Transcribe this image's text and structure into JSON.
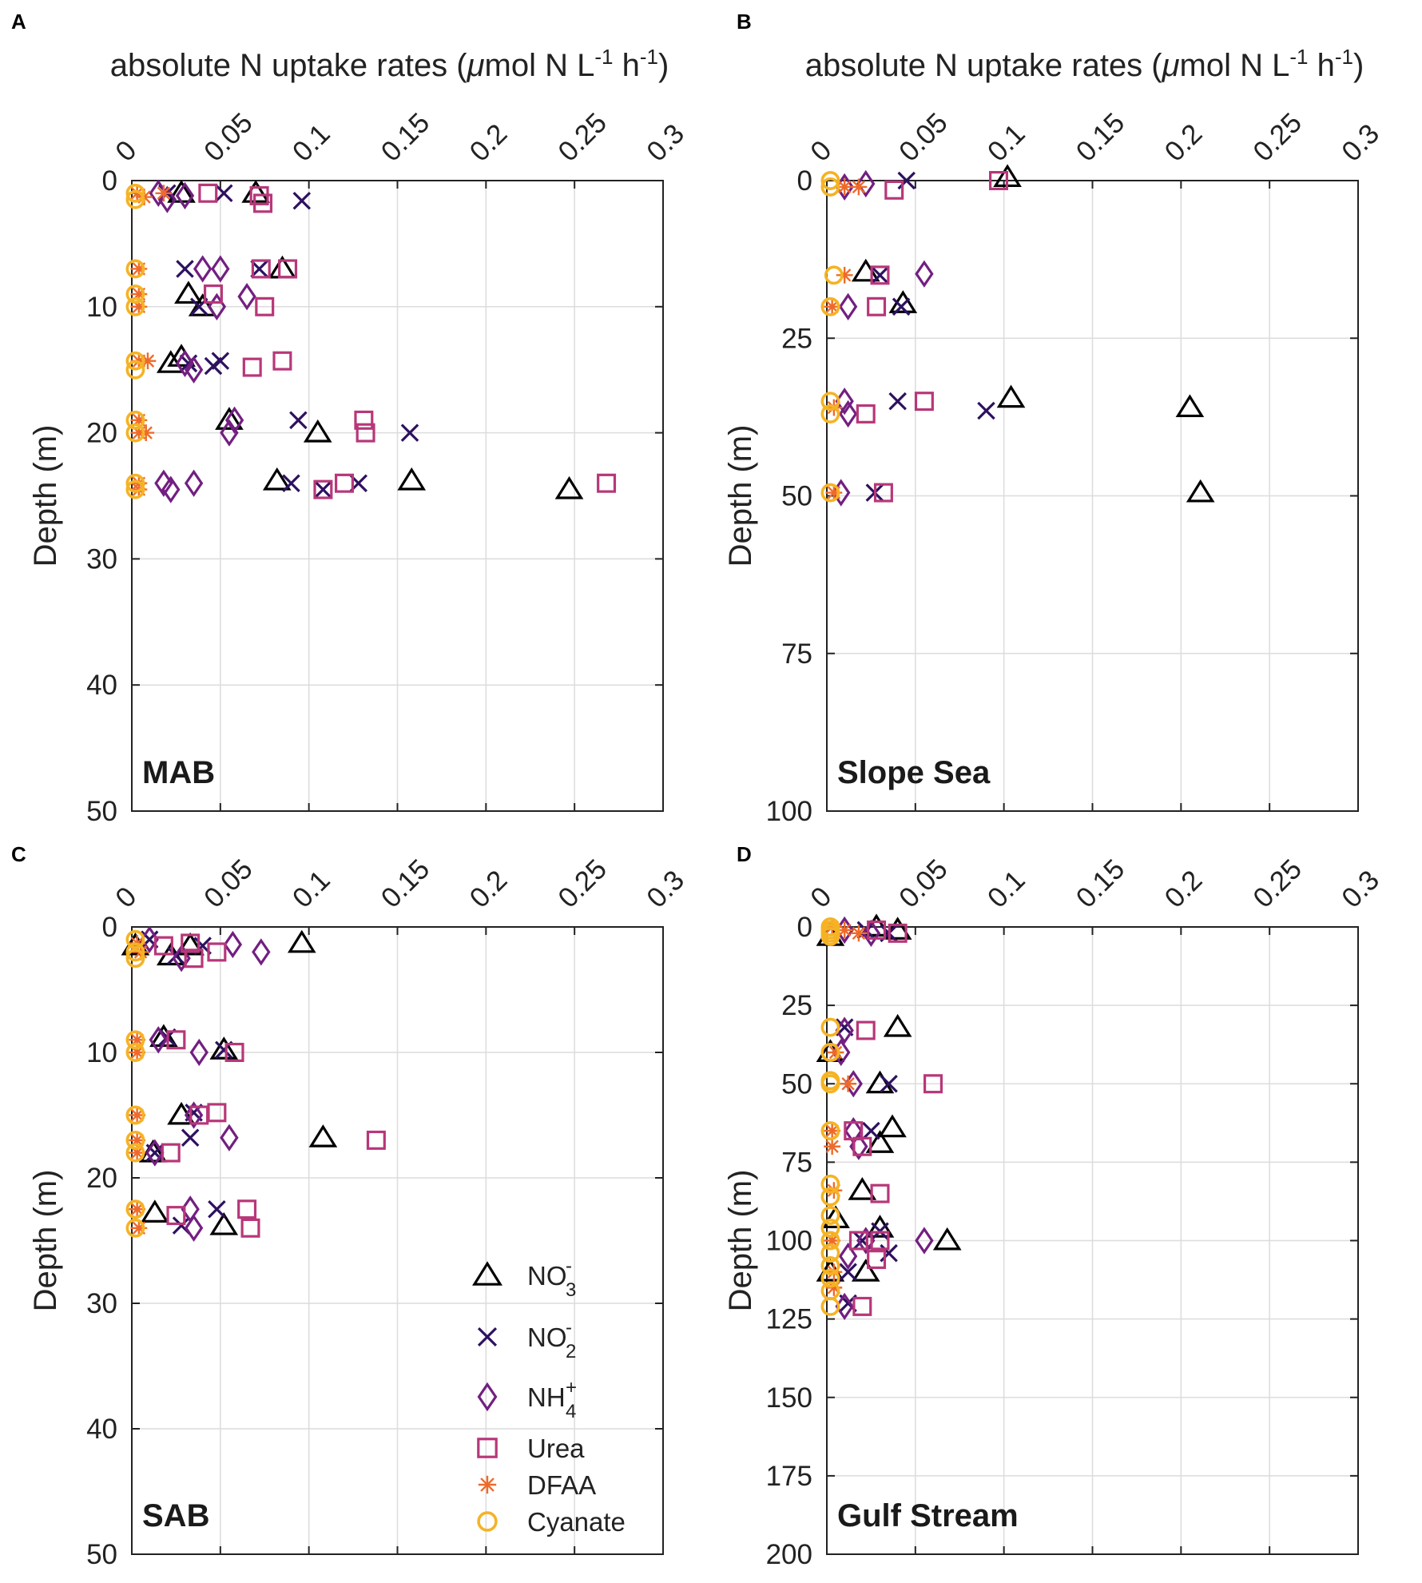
{
  "legend": [
    {
      "key": "NO3",
      "base": "NO",
      "sub": "3",
      "sup": "-",
      "color": "#000000",
      "marker": "triangle"
    },
    {
      "key": "NO2",
      "base": "NO",
      "sub": "2",
      "sup": "-",
      "color": "#2d1160",
      "marker": "x"
    },
    {
      "key": "NH4",
      "base": "NH",
      "sub": "4",
      "sup": "+",
      "color": "#721f81",
      "marker": "diamond"
    },
    {
      "key": "Urea",
      "base": "Urea",
      "sub": "",
      "sup": "",
      "color": "#b73779",
      "marker": "square"
    },
    {
      "key": "DFAA",
      "base": "DFAA",
      "sub": "",
      "sup": "",
      "color": "#f1605d",
      "marker": "asterisk"
    },
    {
      "key": "Cyanate",
      "base": "Cyanate",
      "sub": "",
      "sup": "",
      "color": "#f5a623",
      "marker": "circle"
    }
  ],
  "colors": {
    "NO3": "#000000",
    "NO2": "#2d1160",
    "NH4": "#721f81",
    "Urea": "#b73779",
    "DFAA": "#ee6a2a",
    "Cyanate": "#f5b324",
    "grid": "#dcdcdc",
    "axis": "#222222"
  },
  "chart_data": [
    {
      "type": "scatter",
      "panel": "A",
      "region": "MAB",
      "xlabel_main": "absolute N uptake rates (",
      "xlabel_mu": "μ",
      "xlabel_rest": "mol N L",
      "xlabel_sup1": "-1",
      "xlabel_h": " h",
      "xlabel_sup2": "-1",
      "xlabel_close": ")",
      "ylabel": "Depth (m)",
      "xlim": [
        0,
        0.3
      ],
      "ylim": [
        0,
        50
      ],
      "xticks": [
        "0",
        "0.05",
        "0.1",
        "0.15",
        "0.2",
        "0.25",
        "0.3"
      ],
      "yticks": [
        "0",
        "10",
        "20",
        "30",
        "40",
        "50"
      ],
      "series": {
        "NO3": [
          [
            0.028,
            1
          ],
          [
            0.07,
            1
          ],
          [
            0.085,
            7
          ],
          [
            0.032,
            9
          ],
          [
            0.04,
            10
          ],
          [
            0.028,
            14
          ],
          [
            0.022,
            14.5
          ],
          [
            0.055,
            19
          ],
          [
            0.105,
            20
          ],
          [
            0.082,
            23.8
          ],
          [
            0.158,
            23.8
          ],
          [
            0.247,
            24.5
          ]
        ],
        "NO2": [
          [
            0.02,
            1
          ],
          [
            0.052,
            1
          ],
          [
            0.096,
            1.6
          ],
          [
            0.03,
            7
          ],
          [
            0.072,
            7
          ],
          [
            0.038,
            10
          ],
          [
            0.032,
            14.5
          ],
          [
            0.05,
            14.3
          ],
          [
            0.046,
            14.7
          ],
          [
            0.094,
            19
          ],
          [
            0.157,
            20
          ],
          [
            0.09,
            24
          ],
          [
            0.128,
            24
          ],
          [
            0.108,
            24.5
          ]
        ],
        "NH4": [
          [
            0.015,
            1
          ],
          [
            0.02,
            1.5
          ],
          [
            0.03,
            1.2
          ],
          [
            0.04,
            7
          ],
          [
            0.05,
            7
          ],
          [
            0.048,
            10
          ],
          [
            0.065,
            9.2
          ],
          [
            0.03,
            14.5
          ],
          [
            0.035,
            15
          ],
          [
            0.058,
            19
          ],
          [
            0.055,
            20
          ],
          [
            0.018,
            24
          ],
          [
            0.022,
            24.5
          ],
          [
            0.035,
            24
          ]
        ],
        "Urea": [
          [
            0.043,
            1
          ],
          [
            0.072,
            1.2
          ],
          [
            0.074,
            1.8
          ],
          [
            0.073,
            7
          ],
          [
            0.088,
            7
          ],
          [
            0.046,
            9
          ],
          [
            0.075,
            10
          ],
          [
            0.068,
            14.8
          ],
          [
            0.085,
            14.3
          ],
          [
            0.131,
            19
          ],
          [
            0.132,
            20
          ],
          [
            0.108,
            24.5
          ],
          [
            0.12,
            24
          ],
          [
            0.268,
            24
          ]
        ],
        "DFAA": [
          [
            0.003,
            1
          ],
          [
            0.007,
            1.3
          ],
          [
            0.018,
            1
          ],
          [
            0.004,
            7
          ],
          [
            0.004,
            9
          ],
          [
            0.004,
            10
          ],
          [
            0.004,
            14.3
          ],
          [
            0.009,
            14.3
          ],
          [
            0.004,
            19
          ],
          [
            0.004,
            20
          ],
          [
            0.008,
            20
          ],
          [
            0.004,
            24
          ],
          [
            0.004,
            24.5
          ]
        ],
        "Cyanate": [
          [
            0.002,
            1
          ],
          [
            0.002,
            1.5
          ],
          [
            0.002,
            7
          ],
          [
            0.002,
            9
          ],
          [
            0.002,
            10
          ],
          [
            0.002,
            14.3
          ],
          [
            0.002,
            15
          ],
          [
            0.002,
            19
          ],
          [
            0.002,
            20
          ],
          [
            0.002,
            24
          ],
          [
            0.002,
            24.5
          ]
        ]
      }
    },
    {
      "type": "scatter",
      "panel": "B",
      "region": "Slope Sea",
      "xlabel_main": "absolute N uptake rates (",
      "xlabel_mu": "μ",
      "xlabel_rest": "mol N L",
      "xlabel_sup1": "-1",
      "xlabel_h": " h",
      "xlabel_sup2": "-1",
      "xlabel_close": ")",
      "ylabel": "Depth (m)",
      "xlim": [
        0,
        0.3
      ],
      "ylim": [
        0,
        100
      ],
      "xticks": [
        "0",
        "0.05",
        "0.1",
        "0.15",
        "0.2",
        "0.25",
        "0.3"
      ],
      "yticks": [
        "0",
        "25",
        "50",
        "75",
        "100"
      ],
      "series": {
        "NO3": [
          [
            0.102,
            -0.5
          ],
          [
            0.022,
            14.5
          ],
          [
            0.043,
            19.5
          ],
          [
            0.104,
            34.5
          ],
          [
            0.205,
            36
          ],
          [
            0.211,
            49.5
          ]
        ],
        "NO2": [
          [
            0.045,
            0
          ],
          [
            0.03,
            15
          ],
          [
            0.042,
            20
          ],
          [
            0.04,
            35
          ],
          [
            0.09,
            36.5
          ],
          [
            0.027,
            49.5
          ]
        ],
        "NH4": [
          [
            0.01,
            1
          ],
          [
            0.022,
            0.5
          ],
          [
            0.055,
            14.8
          ],
          [
            0.012,
            20
          ],
          [
            0.01,
            35
          ],
          [
            0.012,
            37
          ],
          [
            0.008,
            49.5
          ]
        ],
        "Urea": [
          [
            0.038,
            1.5
          ],
          [
            0.097,
            0
          ],
          [
            0.03,
            15
          ],
          [
            0.028,
            20
          ],
          [
            0.055,
            35
          ],
          [
            0.022,
            37
          ],
          [
            0.032,
            49.5
          ]
        ],
        "DFAA": [
          [
            0.01,
            1
          ],
          [
            0.018,
            1
          ],
          [
            0.01,
            15
          ],
          [
            0.003,
            20
          ],
          [
            0.004,
            36
          ],
          [
            0.004,
            49.5
          ]
        ],
        "Cyanate": [
          [
            0.002,
            0
          ],
          [
            0.002,
            1
          ],
          [
            0.004,
            15
          ],
          [
            0.002,
            20
          ],
          [
            0.002,
            35
          ],
          [
            0.002,
            37
          ],
          [
            0.002,
            49.5
          ]
        ]
      }
    },
    {
      "type": "scatter",
      "panel": "C",
      "region": "SAB",
      "xlabel_main": "",
      "ylabel": "Depth (m)",
      "xlim": [
        0,
        0.3
      ],
      "ylim": [
        0,
        50
      ],
      "xticks": [
        "0",
        "0.05",
        "0.1",
        "0.15",
        "0.2",
        "0.25",
        "0.3"
      ],
      "yticks": [
        "0",
        "10",
        "20",
        "30",
        "40",
        "50"
      ],
      "series": {
        "NO3": [
          [
            0.096,
            1.3
          ],
          [
            0.033,
            1.5
          ],
          [
            0.022,
            2.3
          ],
          [
            0.002,
            1.5
          ],
          [
            0.018,
            8.8
          ],
          [
            0.052,
            9.8
          ],
          [
            0.028,
            15
          ],
          [
            0.108,
            16.8
          ],
          [
            0.012,
            18
          ],
          [
            0.013,
            22.8
          ],
          [
            0.052,
            23.8
          ]
        ],
        "NO2": [
          [
            0.01,
            1
          ],
          [
            0.04,
            1.5
          ],
          [
            0.025,
            2.3
          ],
          [
            0.02,
            8.8
          ],
          [
            0.052,
            9.8
          ],
          [
            0.035,
            14.8
          ],
          [
            0.033,
            16.8
          ],
          [
            0.013,
            18
          ],
          [
            0.048,
            22.5
          ],
          [
            0.028,
            23.8
          ]
        ],
        "NH4": [
          [
            0.01,
            1
          ],
          [
            0.057,
            1.4
          ],
          [
            0.073,
            2
          ],
          [
            0.028,
            2.5
          ],
          [
            0.015,
            9
          ],
          [
            0.038,
            10
          ],
          [
            0.035,
            15
          ],
          [
            0.055,
            16.8
          ],
          [
            0.013,
            18
          ],
          [
            0.033,
            22.5
          ],
          [
            0.035,
            24
          ]
        ],
        "Urea": [
          [
            0.018,
            1.5
          ],
          [
            0.033,
            1.3
          ],
          [
            0.048,
            2
          ],
          [
            0.035,
            2.5
          ],
          [
            0.025,
            9
          ],
          [
            0.058,
            10
          ],
          [
            0.038,
            15
          ],
          [
            0.048,
            14.8
          ],
          [
            0.138,
            17
          ],
          [
            0.022,
            18
          ],
          [
            0.025,
            23
          ],
          [
            0.065,
            22.5
          ],
          [
            0.067,
            24
          ]
        ],
        "DFAA": [
          [
            0.003,
            1.3
          ],
          [
            0.005,
            2
          ],
          [
            0.003,
            9
          ],
          [
            0.003,
            10
          ],
          [
            0.003,
            15
          ],
          [
            0.003,
            17
          ],
          [
            0.003,
            18
          ],
          [
            0.003,
            22.5
          ],
          [
            0.004,
            24
          ]
        ],
        "Cyanate": [
          [
            0.002,
            1
          ],
          [
            0.002,
            2
          ],
          [
            0.002,
            2.5
          ],
          [
            0.002,
            9
          ],
          [
            0.002,
            10
          ],
          [
            0.002,
            15
          ],
          [
            0.002,
            17
          ],
          [
            0.002,
            18
          ],
          [
            0.002,
            22.5
          ],
          [
            0.002,
            24
          ]
        ]
      }
    },
    {
      "type": "scatter",
      "panel": "D",
      "region": "Gulf Stream",
      "xlabel_main": "",
      "ylabel": "Depth (m)",
      "xlim": [
        0,
        0.3
      ],
      "ylim": [
        0,
        200
      ],
      "xticks": [
        "0",
        "0.05",
        "0.1",
        "0.15",
        "0.2",
        "0.25",
        "0.3"
      ],
      "yticks": [
        "0",
        "25",
        "50",
        "75",
        "100",
        "125",
        "150",
        "175",
        "200"
      ],
      "series": {
        "NO3": [
          [
            0.028,
            0
          ],
          [
            0.04,
            1
          ],
          [
            0.002,
            3
          ],
          [
            0.04,
            32
          ],
          [
            0.002,
            40
          ],
          [
            0.03,
            50
          ],
          [
            0.037,
            64
          ],
          [
            0.03,
            69
          ],
          [
            0.02,
            84
          ],
          [
            0.005,
            93
          ],
          [
            0.03,
            96
          ],
          [
            0.068,
            100
          ],
          [
            0.022,
            110
          ],
          [
            0.002,
            110
          ]
        ],
        "NO2": [
          [
            0.022,
            1
          ],
          [
            0.035,
            2
          ],
          [
            0.01,
            32
          ],
          [
            0.035,
            50
          ],
          [
            0.025,
            65
          ],
          [
            0.03,
            97
          ],
          [
            0.02,
            100
          ],
          [
            0.035,
            104
          ],
          [
            0.012,
            110
          ],
          [
            0.012,
            120
          ]
        ],
        "NH4": [
          [
            0.01,
            1
          ],
          [
            0.025,
            2
          ],
          [
            0.01,
            33
          ],
          [
            0.008,
            40
          ],
          [
            0.015,
            50
          ],
          [
            0.015,
            65
          ],
          [
            0.018,
            70
          ],
          [
            0.022,
            100
          ],
          [
            0.055,
            100
          ],
          [
            0.012,
            105
          ],
          [
            0.01,
            121
          ]
        ],
        "Urea": [
          [
            0.028,
            1
          ],
          [
            0.04,
            2
          ],
          [
            0.022,
            33
          ],
          [
            0.06,
            50
          ],
          [
            0.015,
            65
          ],
          [
            0.02,
            70
          ],
          [
            0.03,
            85
          ],
          [
            0.018,
            100
          ],
          [
            0.03,
            100
          ],
          [
            0.028,
            106
          ],
          [
            0.02,
            121
          ]
        ],
        "DFAA": [
          [
            0.003,
            0
          ],
          [
            0.01,
            1
          ],
          [
            0.018,
            2
          ],
          [
            0.005,
            40
          ],
          [
            0.012,
            50
          ],
          [
            0.003,
            65
          ],
          [
            0.003,
            70
          ],
          [
            0.004,
            84
          ],
          [
            0.003,
            100
          ],
          [
            0.004,
            110
          ],
          [
            0.004,
            115
          ]
        ],
        "Cyanate": [
          [
            0.002,
            0
          ],
          [
            0.002,
            1
          ],
          [
            0.002,
            2
          ],
          [
            0.002,
            3
          ],
          [
            0.002,
            32
          ],
          [
            0.002,
            40
          ],
          [
            0.002,
            49
          ],
          [
            0.002,
            50
          ],
          [
            0.002,
            65
          ],
          [
            0.002,
            82
          ],
          [
            0.002,
            86
          ],
          [
            0.002,
            92
          ],
          [
            0.002,
            96
          ],
          [
            0.002,
            100
          ],
          [
            0.002,
            104
          ],
          [
            0.002,
            108
          ],
          [
            0.002,
            112
          ],
          [
            0.002,
            116
          ],
          [
            0.002,
            121
          ]
        ]
      }
    }
  ]
}
